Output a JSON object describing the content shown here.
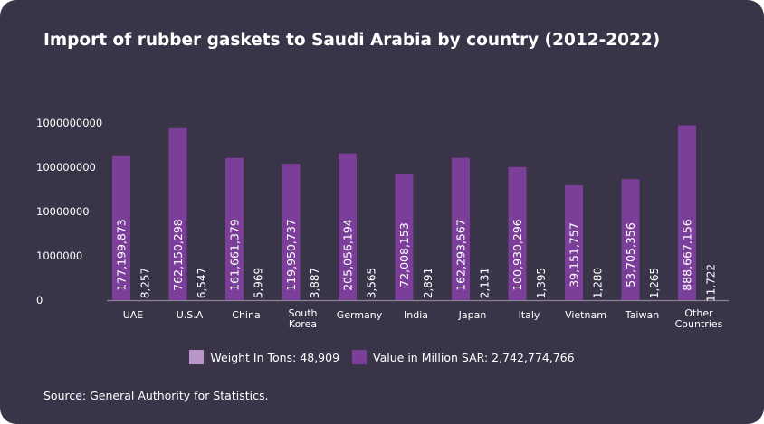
{
  "colors": {
    "background": "#3a3449",
    "value_bar": "#7c3f99",
    "weight_bar": "#b995c9",
    "axis": "#8a8496",
    "text": "#ffffff"
  },
  "legend": {
    "weight_label": "Weight In Tons: 48,909",
    "value_label": "Value in Million SAR: 2,742,774,766"
  },
  "source": "Source: General Authority for Statistics.",
  "chart_data": {
    "type": "bar",
    "title": "Import of rubber gaskets to Saudi Arabia by country (2012-2022)",
    "xlabel": "",
    "ylabel": "",
    "y_ticks": [
      "0",
      "1000000",
      "10000000",
      "100000000",
      "1000000000"
    ],
    "categories": [
      "UAE",
      "U.S.A",
      "China",
      "South Korea",
      "Germany",
      "India",
      "Japan",
      "Italy",
      "Vietnam",
      "Taiwan",
      "Other Countries"
    ],
    "series": [
      {
        "name": "Value in Million SAR",
        "values": [
          177199873,
          762150298,
          161661379,
          119950737,
          205056194,
          72008153,
          162293567,
          100930296,
          39151757,
          53705356,
          888667156
        ],
        "labels": [
          "177,199,873",
          "762,150,298",
          "161,661,379",
          "119,950,737",
          "205,056,194",
          "72,008,153",
          "162,293,567",
          "100,930,296",
          "39,151,757",
          "53,705,356",
          "888,667,156"
        ]
      },
      {
        "name": "Weight In Tons",
        "values": [
          8257,
          6547,
          5969,
          3887,
          3565,
          2891,
          2131,
          1395,
          1280,
          1265,
          11722
        ],
        "labels": [
          "8,257",
          "6,547",
          "5,969",
          "3,887",
          "3,565",
          "2,891",
          "2,131",
          "1,395",
          "1,280",
          "1,265",
          "11,722"
        ]
      }
    ]
  }
}
